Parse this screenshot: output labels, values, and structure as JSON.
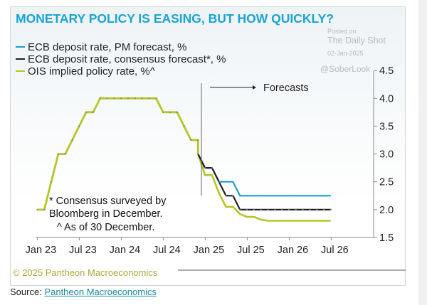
{
  "chart_data": {
    "type": "line",
    "title": "MONETARY POLICY IS EASING, BUT HOW QUICKLY?",
    "legend": [
      "ECB deposit rate, PM forecast, %",
      "ECB deposit rate, consensus forecast*, %",
      "OIS implied policy rate, %^"
    ],
    "legend_placement": "top-left",
    "x_ticks": [
      "Jan 23",
      "Jul 23",
      "Jan 24",
      "Jul 24",
      "Jan 25",
      "Jul 25",
      "Jan 26",
      "Jul 26"
    ],
    "y_ticks": [
      "1.5",
      "2.0",
      "2.5",
      "3.0",
      "3.5",
      "4.0",
      "4.5"
    ],
    "ylim": [
      1.5,
      4.5
    ],
    "y_axis_side": "right",
    "grid": false,
    "annotation_forecasts": "Forecasts",
    "forecast_start": "2024-12",
    "footnotes": [
      "* Consensus  surveyed by",
      "Bloomberg in December.",
      "^ As of 30 December."
    ],
    "history": {
      "x": [
        "2023-01",
        "2023-02",
        "2023-03",
        "2023-04",
        "2023-05",
        "2023-06",
        "2023-07",
        "2023-08",
        "2023-09",
        "2023-10",
        "2023-11",
        "2023-12",
        "2024-01",
        "2024-02",
        "2024-03",
        "2024-04",
        "2024-05",
        "2024-06",
        "2024-07",
        "2024-08",
        "2024-09",
        "2024-10",
        "2024-11",
        "2024-12"
      ],
      "values": [
        2.0,
        2.0,
        2.5,
        3.0,
        3.0,
        3.25,
        3.5,
        3.75,
        3.75,
        4.0,
        4.0,
        4.0,
        4.0,
        4.0,
        4.0,
        4.0,
        4.0,
        4.0,
        3.75,
        3.75,
        3.75,
        3.5,
        3.25,
        3.25
      ]
    },
    "series": [
      {
        "name": "ECB deposit rate, PM forecast, %",
        "color": "#1a9fc9",
        "x": [
          "2024-12",
          "2025-01",
          "2025-02",
          "2025-03",
          "2025-04",
          "2025-05",
          "2025-06",
          "2025-07",
          "2025-08",
          "2025-09",
          "2025-10",
          "2025-11",
          "2025-12",
          "2026-01",
          "2026-02",
          "2026-03",
          "2026-04",
          "2026-05",
          "2026-06",
          "2026-07"
        ],
        "values": [
          3.0,
          2.75,
          2.75,
          2.5,
          2.5,
          2.5,
          2.25,
          2.25,
          2.25,
          2.25,
          2.25,
          2.25,
          2.25,
          2.25,
          2.25,
          2.25,
          2.25,
          2.25,
          2.25,
          2.25
        ]
      },
      {
        "name": "ECB deposit rate, consensus forecast*, %",
        "color": "#222222",
        "x": [
          "2024-12",
          "2025-01",
          "2025-02",
          "2025-03",
          "2025-04",
          "2025-05",
          "2025-06",
          "2025-07",
          "2025-08",
          "2025-09",
          "2025-10",
          "2025-11",
          "2025-12",
          "2026-01",
          "2026-02",
          "2026-03",
          "2026-04",
          "2026-05",
          "2026-06",
          "2026-07"
        ],
        "values": [
          3.0,
          2.75,
          2.75,
          2.5,
          2.25,
          2.25,
          2.0,
          2.0,
          2.0,
          2.0,
          2.0,
          2.0,
          2.0,
          2.0,
          2.0,
          2.0,
          2.0,
          2.0,
          2.0,
          2.0
        ]
      },
      {
        "name": "OIS implied policy rate, %^",
        "color": "#b5c625",
        "x": [
          "2024-12",
          "2025-01",
          "2025-02",
          "2025-03",
          "2025-04",
          "2025-05",
          "2025-06",
          "2025-07",
          "2025-08",
          "2025-09",
          "2025-10",
          "2025-11",
          "2025-12",
          "2026-01",
          "2026-02",
          "2026-03",
          "2026-04",
          "2026-05",
          "2026-06",
          "2026-07"
        ],
        "values": [
          3.0,
          2.62,
          2.62,
          2.3,
          2.05,
          2.05,
          1.92,
          1.87,
          1.87,
          1.82,
          1.8,
          1.8,
          1.8,
          1.8,
          1.8,
          1.8,
          1.8,
          1.8,
          1.8,
          1.8
        ]
      }
    ]
  },
  "watermark": {
    "posted": "Posted on",
    "site": "The Daily Shot",
    "date": "02-Jan-2025",
    "handle": "@SoberLook"
  },
  "copyright": "© 2025 Pantheon Macroeconomics",
  "source": {
    "label": "Source:",
    "link": "Pantheon Macroeconomics"
  }
}
